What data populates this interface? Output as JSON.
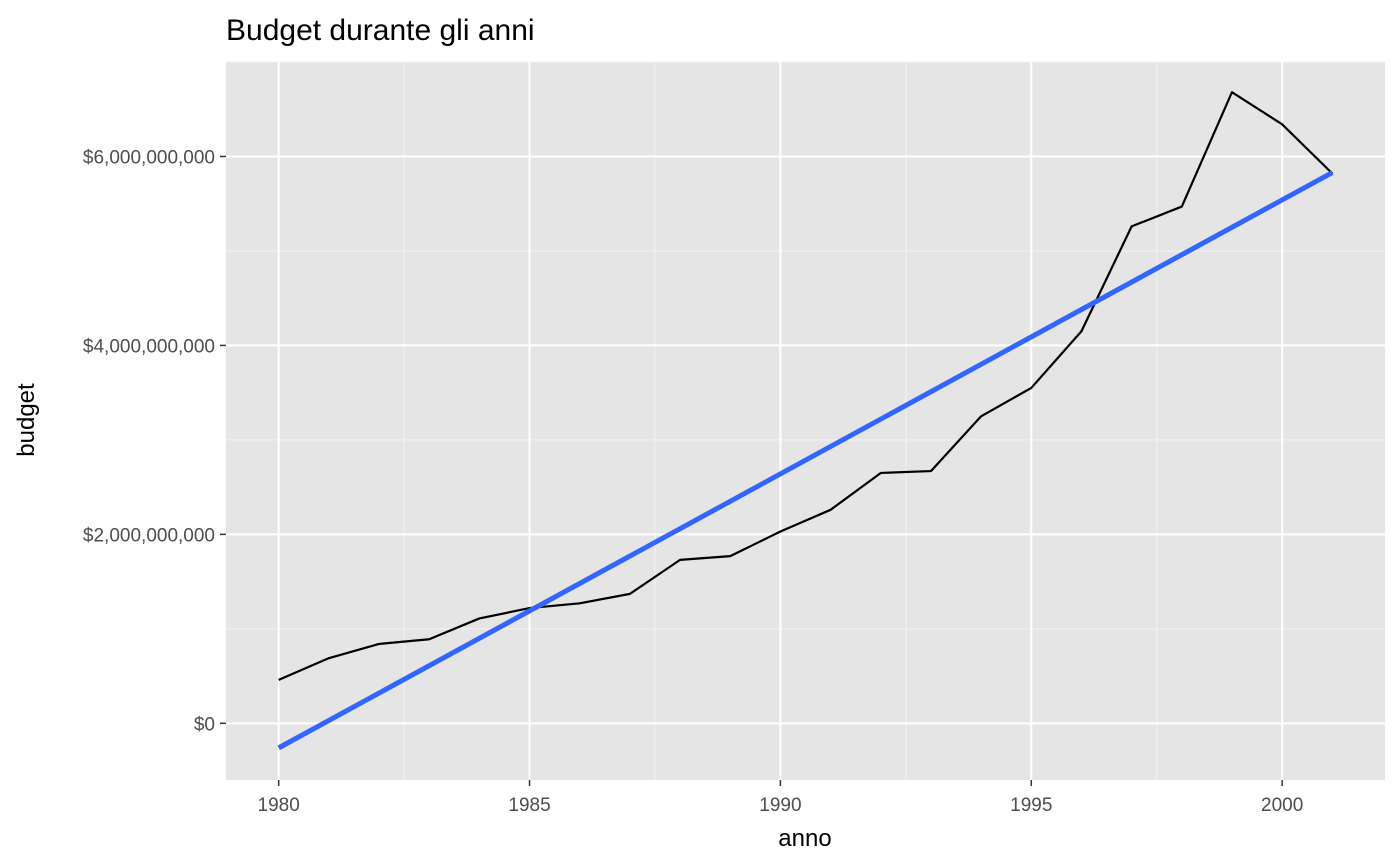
{
  "chart_data": {
    "type": "line",
    "title": "Budget durante gli anni",
    "xlabel": "anno",
    "ylabel": "budget",
    "xlim": [
      1978.95,
      2002.05
    ],
    "ylim": [
      -600000000,
      7000000000
    ],
    "x_ticks": [
      1980,
      1985,
      1990,
      1995,
      2000
    ],
    "x_tick_labels": [
      "1980",
      "1985",
      "1990",
      "1995",
      "2000"
    ],
    "y_ticks": [
      0,
      2000000000,
      4000000000,
      6000000000
    ],
    "y_tick_labels": [
      "$0",
      "$2,000,000,000",
      "$4,000,000,000",
      "$6,000,000,000"
    ],
    "grid": true,
    "background": "#e5e5e5",
    "series": [
      {
        "kind": "line",
        "color": "#000000",
        "x": [
          1980,
          1981,
          1982,
          1983,
          1984,
          1985,
          1986,
          1987,
          1988,
          1989,
          1990,
          1991,
          1992,
          1993,
          1994,
          1995,
          1996,
          1997,
          1998,
          1999,
          2000,
          2001
        ],
        "y": [
          460000000,
          690000000,
          840000000,
          890000000,
          1110000000,
          1220000000,
          1270000000,
          1370000000,
          1730000000,
          1770000000,
          2030000000,
          2260000000,
          2650000000,
          2670000000,
          3250000000,
          3550000000,
          4150000000,
          5260000000,
          5470000000,
          6680000000,
          6340000000,
          5820000000
        ]
      },
      {
        "kind": "linear-fit",
        "color": "#3366ff",
        "x": [
          1980,
          2001
        ],
        "y": [
          -260000000,
          5830000000
        ]
      }
    ]
  }
}
